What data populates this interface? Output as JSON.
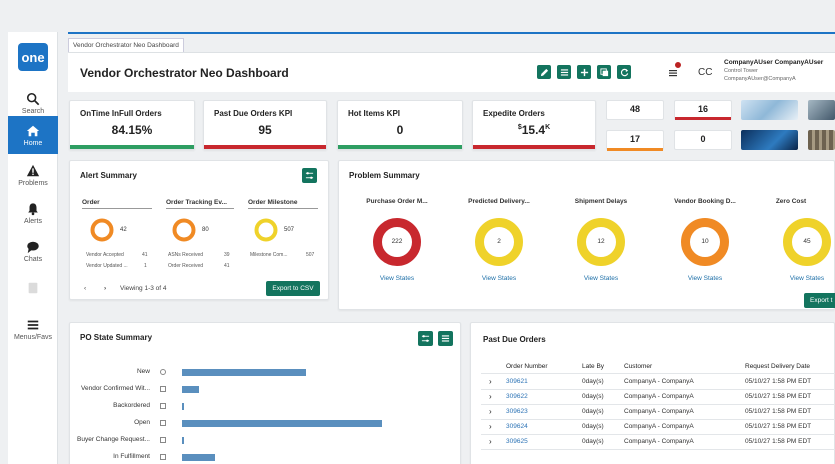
{
  "app": {
    "logo": "one",
    "tab_title": "Vendor Orchestrator Neo Dashboard",
    "page_title": "Vendor Orchestrator Neo Dashboard"
  },
  "nav": [
    {
      "label": "Search",
      "icon": "search-icon"
    },
    {
      "label": "Home",
      "icon": "home-icon"
    },
    {
      "label": "Problems",
      "icon": "warning-icon"
    },
    {
      "label": "Alerts",
      "icon": "bell-icon"
    },
    {
      "label": "Chats",
      "icon": "chat-icon"
    },
    {
      "label": "Menus/Favs",
      "icon": "hamburger-icon"
    }
  ],
  "user": {
    "initials": "CC",
    "name": "CompanyAUser CompanyAUser",
    "role": "Control Tower",
    "email": "CompanyAUser@CompanyA"
  },
  "kpis": [
    {
      "title": "OnTime InFull Orders",
      "value": "84.15%",
      "bar_color": "#2e9e62"
    },
    {
      "title": "Past Due Orders KPI",
      "value": "95",
      "bar_color": "#c8282e"
    },
    {
      "title": "Hot Items KPI",
      "value": "0",
      "bar_color": "#2e9e62"
    },
    {
      "title": "Expedite Orders",
      "value_prefix": "$",
      "value": "15.4",
      "value_suffix": "K",
      "bar_color": "#c8282e"
    }
  ],
  "mini_kpis": [
    {
      "value": "48",
      "bar_color": "#2e9e62"
    },
    {
      "value": "16",
      "bar_color": "#c8282e"
    },
    {
      "value": "17",
      "bar_color": "#f08a24"
    },
    {
      "value": "0",
      "bar_color": "#2e9e62"
    }
  ],
  "alert_summary": {
    "title": "Alert Summary",
    "columns": [
      {
        "label": "Order",
        "count": "42",
        "rows": [
          [
            "Vendor Accepted",
            "41"
          ],
          [
            "Vendor Updated ...",
            "1"
          ]
        ],
        "ring": 0.97,
        "color": "#f08a24"
      },
      {
        "label": "Order Tracking Ev...",
        "count": "80",
        "rows": [
          [
            "ASNs Received",
            "39"
          ],
          [
            "Order Received",
            "41"
          ]
        ],
        "ring": 0.95,
        "color": "#f08a24"
      },
      {
        "label": "Order Milestone",
        "count": "507",
        "rows": [
          [
            "Milestone Com...",
            "507"
          ]
        ],
        "ring": 1.0,
        "color": "#efd22a"
      }
    ],
    "pager_text": "Viewing 1-3 of 4",
    "export_label": "Export to CSV"
  },
  "problem_summary": {
    "title": "Problem Summary",
    "items": [
      {
        "label": "Purchase Order M...",
        "value": "222",
        "color": "#c8282e",
        "link": "View States"
      },
      {
        "label": "Predicted Delivery...",
        "value": "2",
        "color": "#efd22a",
        "link": "View States"
      },
      {
        "label": "Shipment Delays",
        "value": "12",
        "color": "#efd22a",
        "link": "View States"
      },
      {
        "label": "Vendor Booking D...",
        "value": "10",
        "color": "#f08a24",
        "link": "View States"
      },
      {
        "label": "Zero Cost",
        "value": "45",
        "color": "#efd22a",
        "link": "View States"
      }
    ],
    "export_label": "Export t"
  },
  "po_state": {
    "title": "PO State Summary",
    "chart_data": {
      "type": "bar",
      "orientation": "horizontal",
      "categories": [
        "New",
        "Vendor Confirmed Wit...",
        "Backordered",
        "Open",
        "Buyer Change Request...",
        "In Fulfillment"
      ],
      "values": [
        52,
        7,
        1,
        84,
        1,
        14
      ],
      "xlim": [
        0,
        100
      ],
      "title": "PO State Summary"
    }
  },
  "past_due": {
    "title": "Past Due Orders",
    "headers": [
      "Order Number",
      "Late By",
      "Customer",
      "Request Delivery Date"
    ],
    "rows": [
      [
        "309621",
        "0day(s)",
        "CompanyA - CompanyA",
        "05/10/27 1:58 PM EDT"
      ],
      [
        "309622",
        "0day(s)",
        "CompanyA - CompanyA",
        "05/10/27 1:58 PM EDT"
      ],
      [
        "309623",
        "0day(s)",
        "CompanyA - CompanyA",
        "05/10/27 1:58 PM EDT"
      ],
      [
        "309624",
        "0day(s)",
        "CompanyA - CompanyA",
        "05/10/27 1:58 PM EDT"
      ],
      [
        "309625",
        "0day(s)",
        "CompanyA - CompanyA",
        "05/10/27 1:58 PM EDT"
      ]
    ]
  }
}
